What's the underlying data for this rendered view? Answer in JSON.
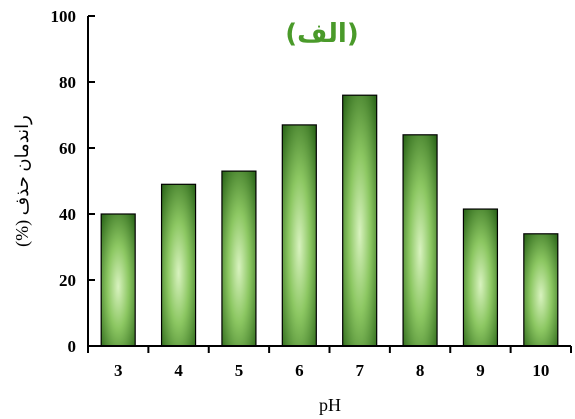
{
  "chart_data": {
    "type": "bar",
    "title": "(الف)",
    "xlabel": "pH",
    "ylabel": "راندمان حذف (%)",
    "categories": [
      "3",
      "4",
      "5",
      "6",
      "7",
      "8",
      "9",
      "10"
    ],
    "values": [
      40,
      49,
      53,
      67,
      76,
      64,
      41.5,
      34
    ],
    "ylim": [
      0,
      100
    ],
    "yticks": [
      "0",
      "20",
      "40",
      "60",
      "80",
      "100"
    ],
    "grid": false,
    "legend": "none",
    "colors": {
      "bar_dark": "#2f6a1c",
      "bar_light": "#d8f2bf",
      "title": "#4a9a2a",
      "axis": "#000000"
    }
  }
}
